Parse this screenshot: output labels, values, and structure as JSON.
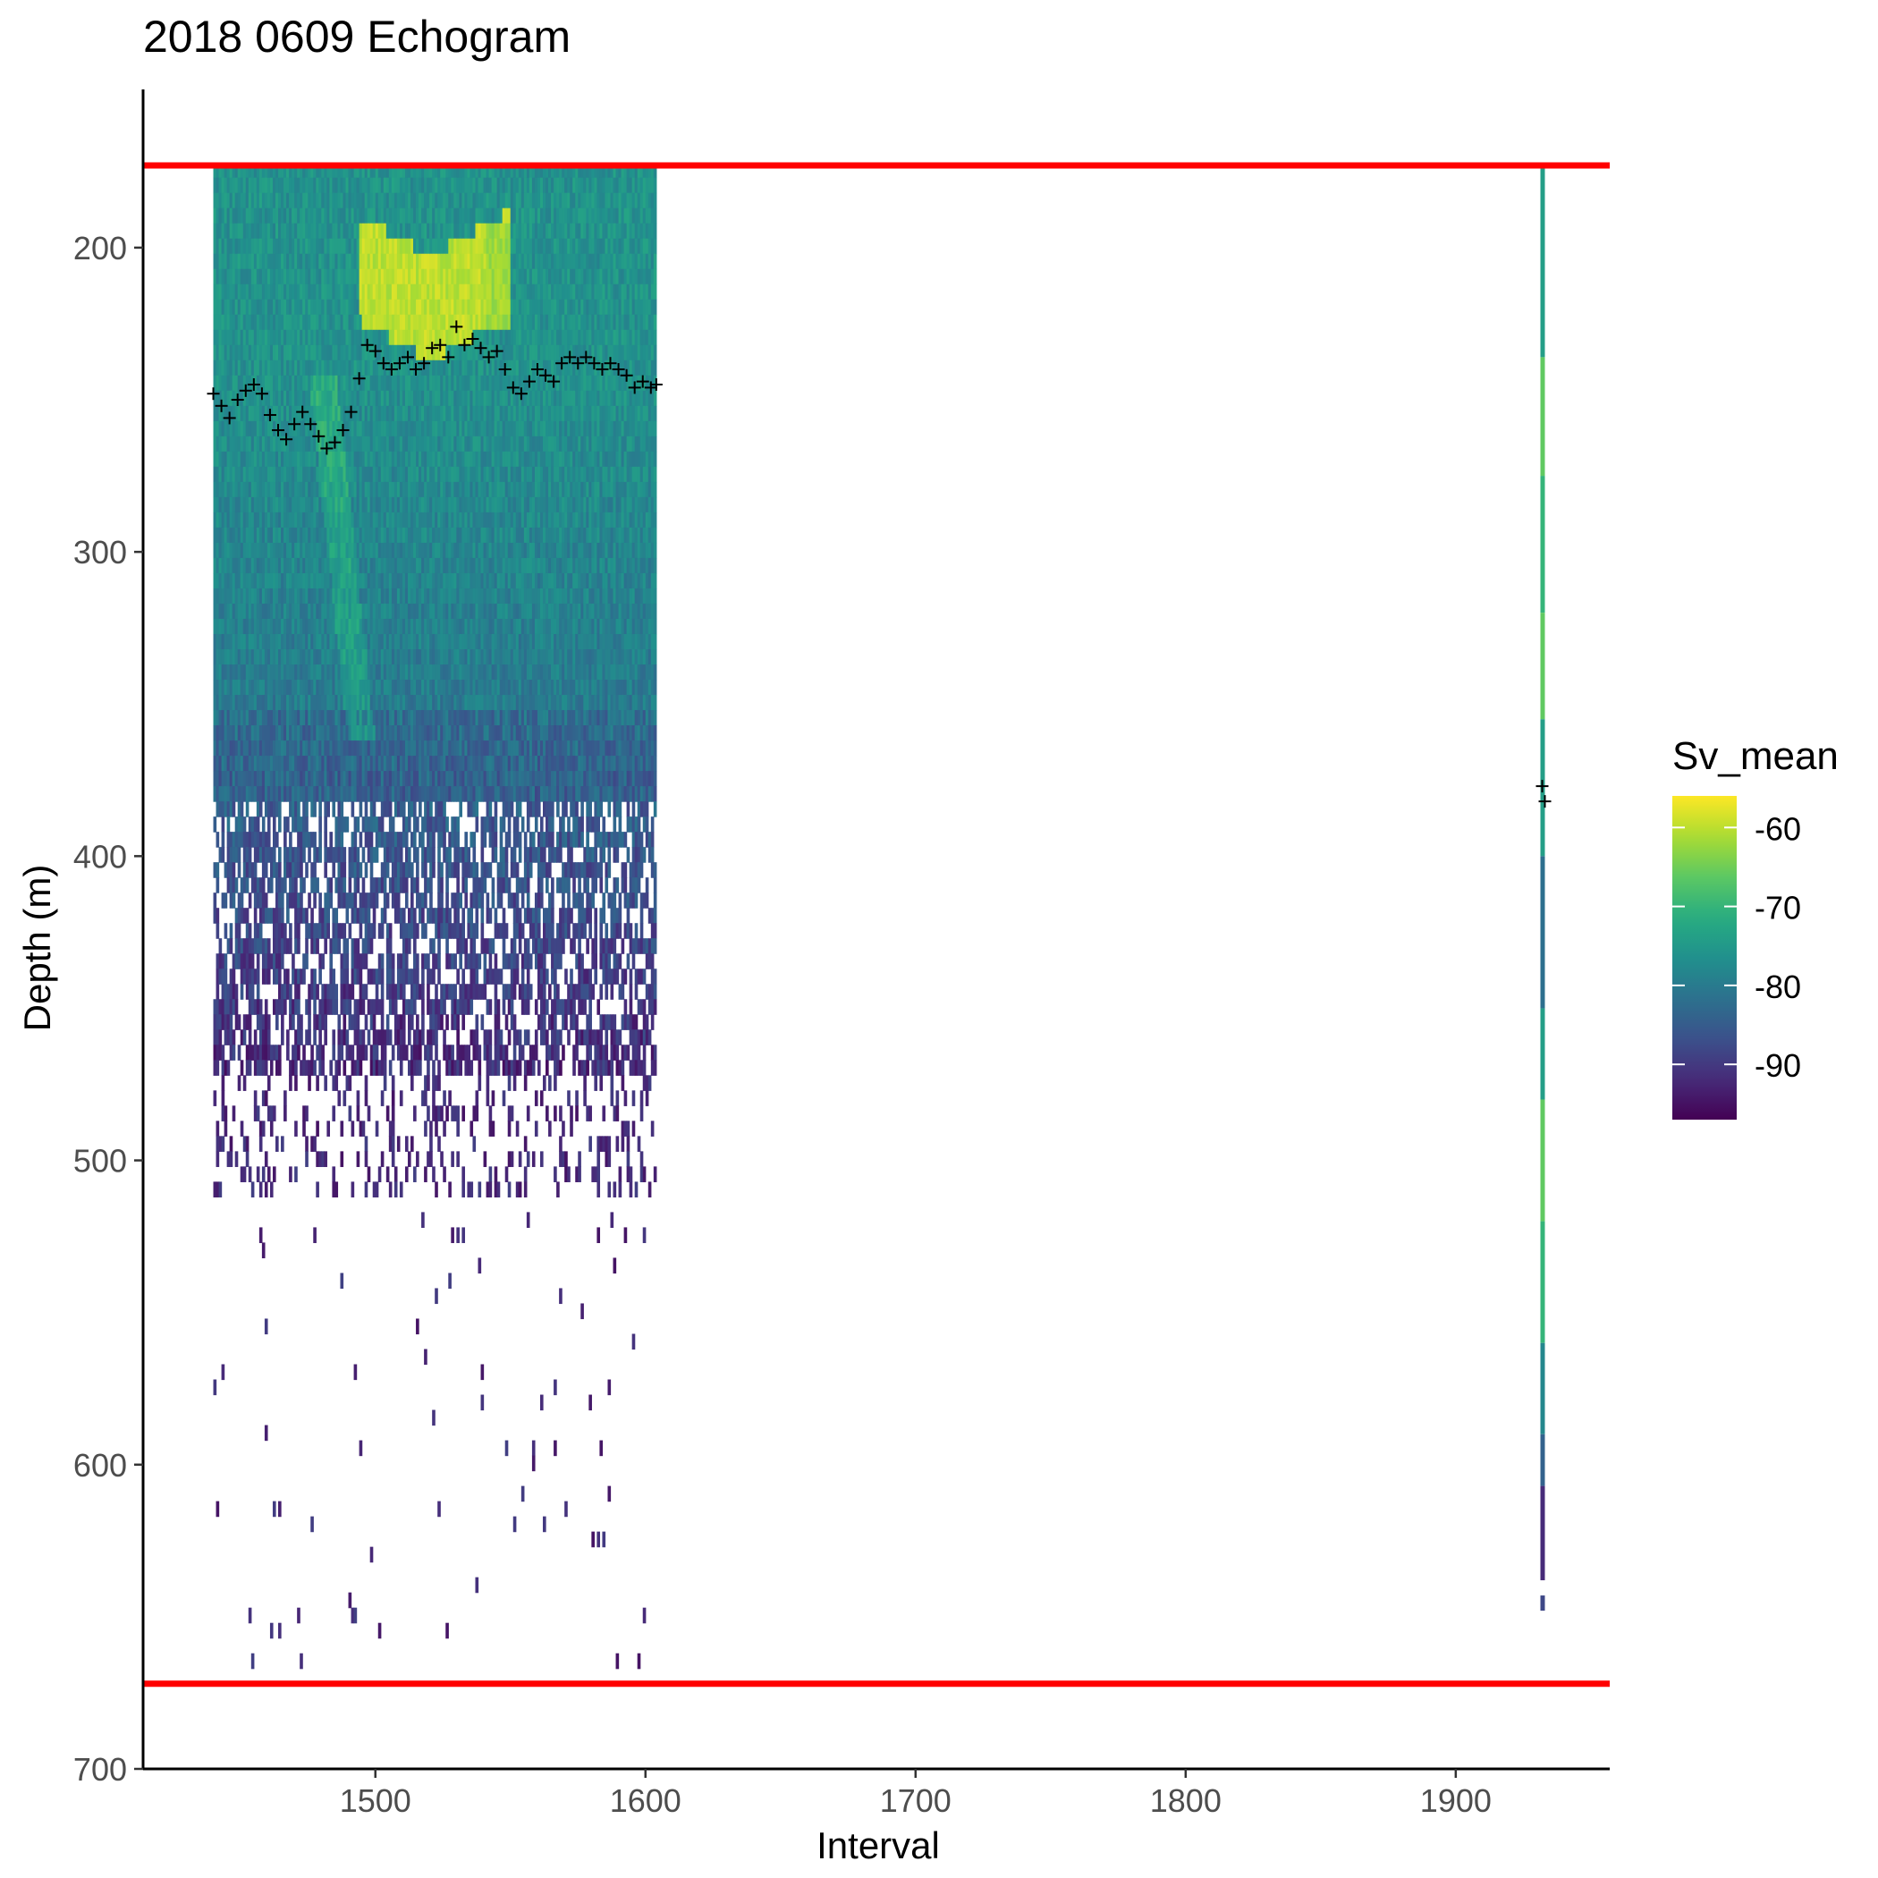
{
  "chart_data": {
    "type": "heatmap",
    "title": "2018 0609 Echogram",
    "xlabel": "Interval",
    "ylabel": "Depth (m)",
    "xlim": [
      1414,
      1957
    ],
    "ylim": [
      700,
      148
    ],
    "y_reversed": true,
    "x_ticks": [
      1500,
      1600,
      1700,
      1800,
      1900
    ],
    "x_tick_labels": [
      "1500",
      "1600",
      "1700",
      "1800",
      "1900"
    ],
    "y_ticks": [
      200,
      300,
      400,
      500,
      600,
      700
    ],
    "y_tick_labels": [
      "200",
      "300",
      "400",
      "500",
      "600",
      "700"
    ],
    "grid": false,
    "legend": {
      "title": "Sv_mean",
      "position": "right",
      "colormap": "viridis",
      "range": [
        -97,
        -56
      ],
      "ticks": [
        -60,
        -70,
        -80,
        -90
      ],
      "tick_labels": [
        "-60",
        "-70",
        "-80",
        "-90"
      ]
    },
    "reference_lines": {
      "color": "#ff0000",
      "depths": [
        173,
        672
      ]
    },
    "heatmap_block": {
      "x_start": 1440,
      "x_end": 1604,
      "depth_top": 172,
      "description_of_values": "Sv_mean approx -75 near surface, yellow band (-58) near 200-225 m around intervals 1495-1550, decreasing to approx -90 below 380 m, sparse cells to 660 m"
    },
    "heatmap_profile": {
      "x": 1932,
      "segments": [
        {
          "depth_top": 172,
          "depth_bottom": 236,
          "sv": -74
        },
        {
          "depth_top": 236,
          "depth_bottom": 275,
          "sv": -66
        },
        {
          "depth_top": 275,
          "depth_bottom": 320,
          "sv": -70
        },
        {
          "depth_top": 320,
          "depth_bottom": 355,
          "sv": -66
        },
        {
          "depth_top": 355,
          "depth_bottom": 400,
          "sv": -74
        },
        {
          "depth_top": 400,
          "depth_bottom": 450,
          "sv": -82
        },
        {
          "depth_top": 450,
          "depth_bottom": 480,
          "sv": -74
        },
        {
          "depth_top": 480,
          "depth_bottom": 520,
          "sv": -66
        },
        {
          "depth_top": 520,
          "depth_bottom": 560,
          "sv": -70
        },
        {
          "depth_top": 560,
          "depth_bottom": 590,
          "sv": -78
        },
        {
          "depth_top": 590,
          "depth_bottom": 607,
          "sv": -84
        },
        {
          "depth_top": 607,
          "depth_bottom": 638,
          "sv": -92
        },
        {
          "depth_top": 643,
          "depth_bottom": 648,
          "sv": -88
        }
      ]
    },
    "bottom_line_points": {
      "marker": "+",
      "x": [
        1440,
        1443,
        1446,
        1449,
        1452,
        1455,
        1458,
        1461,
        1464,
        1467,
        1470,
        1473,
        1476,
        1479,
        1482,
        1485,
        1488,
        1491,
        1494,
        1497,
        1500,
        1503,
        1506,
        1509,
        1512,
        1515,
        1518,
        1521,
        1524,
        1527,
        1530,
        1533,
        1536,
        1539,
        1542,
        1545,
        1548,
        1551,
        1554,
        1557,
        1560,
        1563,
        1566,
        1569,
        1572,
        1575,
        1578,
        1581,
        1584,
        1587,
        1590,
        1593,
        1596,
        1599,
        1602,
        1604,
        1932,
        1933
      ],
      "y": [
        248,
        252,
        256,
        250,
        247,
        245,
        248,
        255,
        260,
        263,
        258,
        254,
        258,
        262,
        266,
        264,
        260,
        254,
        243,
        232,
        234,
        238,
        240,
        238,
        236,
        240,
        238,
        233,
        232,
        236,
        226,
        232,
        230,
        233,
        236,
        234,
        240,
        246,
        248,
        244,
        240,
        242,
        244,
        238,
        236,
        238,
        236,
        238,
        240,
        238,
        240,
        242,
        246,
        244,
        246,
        245,
        377,
        382
      ]
    }
  }
}
